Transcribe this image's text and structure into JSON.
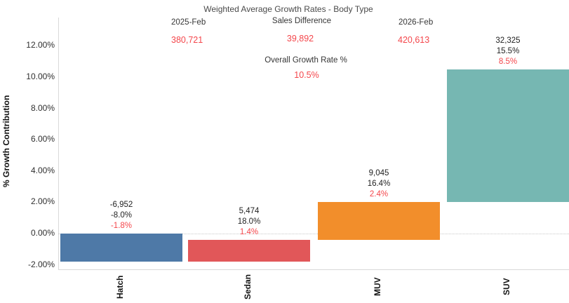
{
  "title": "Weighted Average Growth Rates - Body Type",
  "header": {
    "period_start_label": "2025-Feb",
    "period_start_value": "380,721",
    "sales_difference_label": "Sales Difference",
    "sales_difference_value": "39,892",
    "period_end_label": "2026-Feb",
    "period_end_value": "420,613",
    "overall_growth_label": "Overall Growth Rate %",
    "overall_growth_value": "10.5%"
  },
  "colors": {
    "hatch_bar": "#4e79a7",
    "sedan_bar": "#e15759",
    "muv_bar": "#f28e2b",
    "suv_bar": "#76b7b2",
    "highlight_text": "#f4464b",
    "label_text": "#1f1f1f",
    "axis_line": "#d9d9d9",
    "grid_line": "#c9c9c9"
  },
  "chart_data": {
    "type": "bar",
    "subtype": "waterfall",
    "title": "Weighted Average Growth Rates - Body Type",
    "xlabel": "",
    "ylabel": "% Growth Contribution",
    "ylim": [
      -2.6,
      13.8
    ],
    "grid": "zero-line only, dotted",
    "yticks": [
      {
        "value": 12,
        "label": "12.00%"
      },
      {
        "value": 10,
        "label": "10.00%"
      },
      {
        "value": 8,
        "label": "8.00%"
      },
      {
        "value": 6,
        "label": "6.00%"
      },
      {
        "value": 4,
        "label": "4.00%"
      },
      {
        "value": 2,
        "label": "2.00%"
      },
      {
        "value": 0,
        "label": "0.00%"
      },
      {
        "value": -2,
        "label": "-2.00%"
      }
    ],
    "categories": [
      "Hatch",
      "Sedan",
      "MUV",
      "SUV"
    ],
    "bars": [
      {
        "category": "Hatch",
        "sales_difference": "-6,952",
        "growth_rate": "-8.0%",
        "contribution": "-1.8%",
        "start": 0.0,
        "end": -1.8,
        "color": "#4e79a7"
      },
      {
        "category": "Sedan",
        "sales_difference": "5,474",
        "growth_rate": "18.0%",
        "contribution": "1.4%",
        "start": -1.8,
        "end": -0.4,
        "color": "#e15759"
      },
      {
        "category": "MUV",
        "sales_difference": "9,045",
        "growth_rate": "16.4%",
        "contribution": "2.4%",
        "start": -0.4,
        "end": 2.0,
        "color": "#f28e2b"
      },
      {
        "category": "SUV",
        "sales_difference": "32,325",
        "growth_rate": "15.5%",
        "contribution": "8.5%",
        "start": 2.0,
        "end": 10.5,
        "color": "#76b7b2"
      }
    ]
  }
}
